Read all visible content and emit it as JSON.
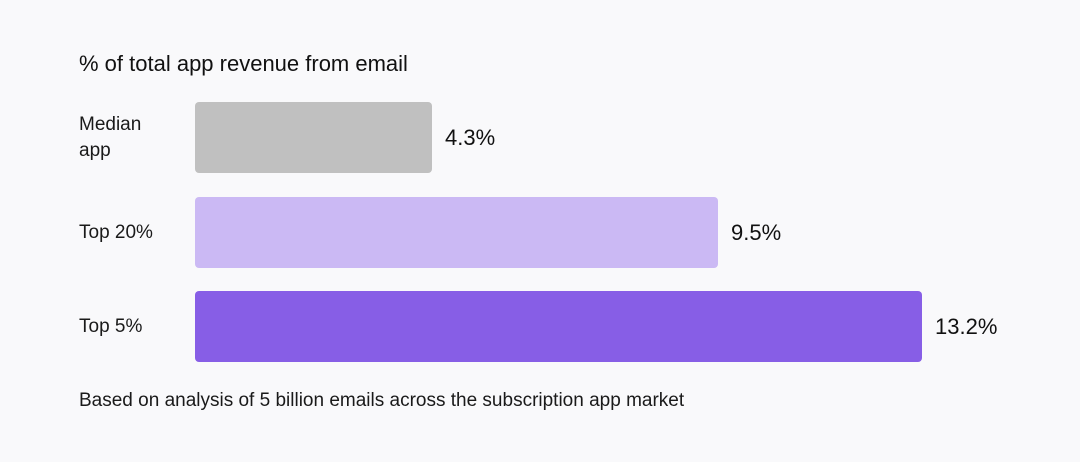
{
  "chart_data": {
    "type": "bar",
    "orientation": "horizontal",
    "title": "% of total app revenue from email",
    "categories": [
      "Median app",
      "Top 20%",
      "Top 5%"
    ],
    "values": [
      4.3,
      9.5,
      13.2
    ],
    "value_labels": [
      "4.3%",
      "9.5%",
      "13.2%"
    ],
    "bar_colors": [
      "#c0c0c0",
      "#cbb9f4",
      "#875ee6"
    ],
    "xlabel": "",
    "ylabel": "",
    "grid": false,
    "legend": "none"
  },
  "footnote": "Based on analysis of 5 billion emails across the subscription app market"
}
